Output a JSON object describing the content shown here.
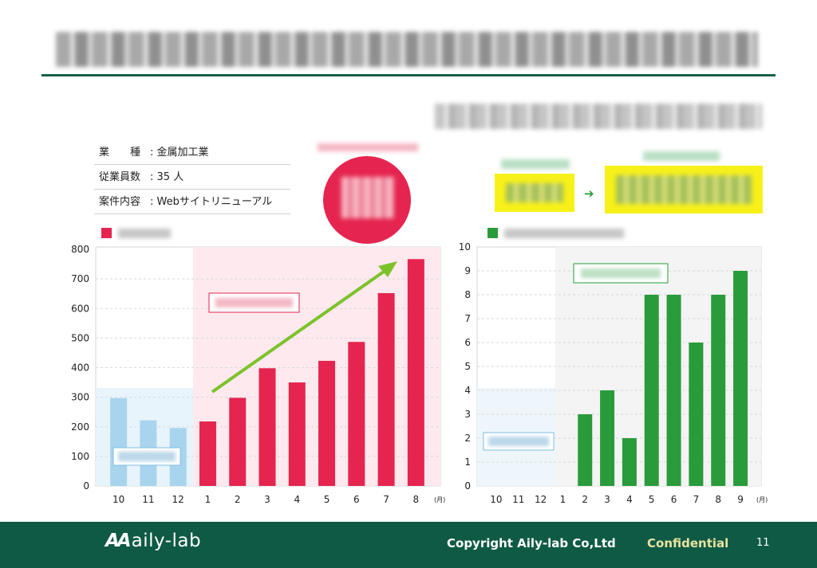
{
  "info": [
    {
      "key": "業　　種",
      "value": "金属加工業"
    },
    {
      "key": "従業員数",
      "value": "35 人"
    },
    {
      "key": "案件内容",
      "value": "Webサイトリニューアル"
    }
  ],
  "colors": {
    "pink": "#e5254f",
    "blue": "#a8d4ee",
    "green": "#2a9b3b",
    "footer": "#0f5a45",
    "rule": "#17604a",
    "highlight": "#f8f119"
  },
  "chart_data": [
    {
      "type": "bar",
      "categories": [
        "10",
        "11",
        "12",
        "1",
        "2",
        "3",
        "4",
        "5",
        "6",
        "7",
        "8"
      ],
      "values": [
        297,
        222,
        196,
        218,
        298,
        398,
        350,
        423,
        487,
        652,
        767
      ],
      "ylim": [
        0,
        800
      ],
      "yticks": [
        "0",
        "100",
        "200",
        "300",
        "400",
        "500",
        "600",
        "700",
        "800"
      ],
      "unit": "(月)",
      "grid": true
    },
    {
      "type": "bar",
      "categories": [
        "10",
        "11",
        "12",
        "1",
        "2",
        "3",
        "4",
        "5",
        "6",
        "7",
        "8",
        "9"
      ],
      "values": [
        0,
        0,
        0,
        0,
        3,
        4,
        2,
        8,
        8,
        6,
        8,
        9
      ],
      "ylim": [
        0,
        10
      ],
      "yticks": [
        "0",
        "1",
        "2",
        "3",
        "4",
        "5",
        "6",
        "7",
        "8",
        "9",
        "10"
      ],
      "unit": "(月)",
      "grid": true
    }
  ],
  "footer": {
    "logo_mark": "AA",
    "logo_text": "aily-lab",
    "copyright": "Copyright  Aily-lab Co,Ltd",
    "confidential": "Confidential",
    "page": "11"
  }
}
